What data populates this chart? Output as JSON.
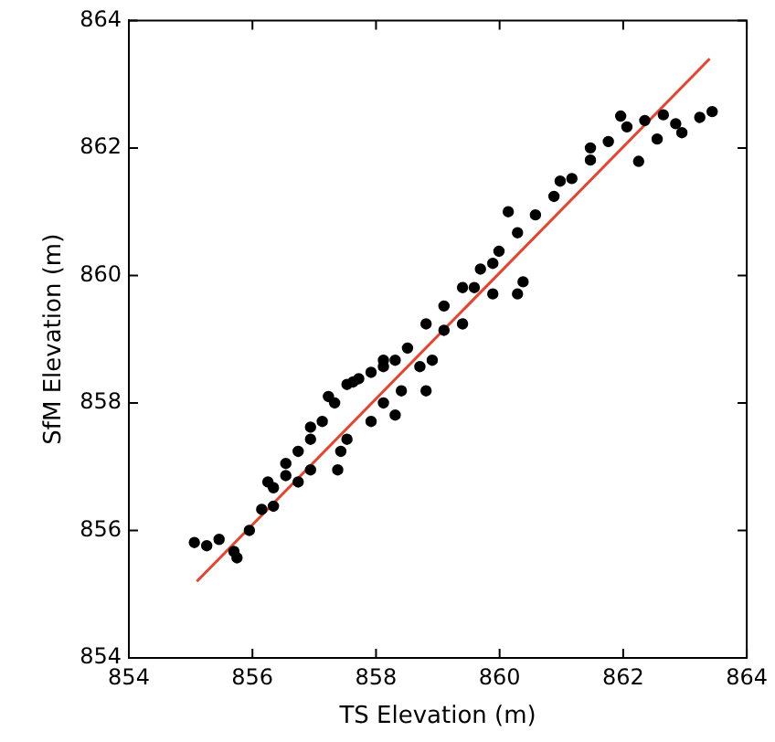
{
  "chart_data": {
    "type": "scatter",
    "xlabel": "TS Elevation (m)",
    "ylabel": "SfM Elevation (m)",
    "xlim": [
      854,
      864
    ],
    "ylim": [
      854,
      864
    ],
    "xticks": [
      854,
      856,
      858,
      860,
      862,
      864
    ],
    "yticks": [
      854,
      856,
      858,
      860,
      862,
      864
    ],
    "grid": false,
    "marker": "circle",
    "series": [
      {
        "color": "#000000",
        "x": [
          855.06,
          855.26,
          855.46,
          855.7,
          855.75,
          855.95,
          856.15,
          856.34,
          856.54,
          856.74,
          856.94,
          857.13,
          857.33,
          857.53,
          857.72,
          857.92,
          858.12,
          858.31,
          858.51,
          858.81,
          859.1,
          859.4,
          859.69,
          859.99,
          860.29,
          860.58,
          860.88,
          861.17,
          861.47,
          861.76,
          862.06,
          862.35,
          862.65,
          862.85,
          863.24,
          863.44,
          856.94,
          857.43,
          857.92,
          858.41,
          858.91,
          859.4,
          859.89,
          860.14,
          860.29,
          860.38,
          858.81,
          858.31,
          857.38,
          861.96,
          862.25,
          860.98,
          861.47,
          862.55,
          862.95,
          857.23,
          857.63,
          858.12,
          856.94,
          856.54,
          856.25,
          856.34,
          856.74,
          857.53,
          858.12,
          858.71,
          859.1,
          859.59,
          859.89
        ],
        "values": [
          855.81,
          855.76,
          855.86,
          855.67,
          855.57,
          856.0,
          856.33,
          856.67,
          856.86,
          857.24,
          857.43,
          857.71,
          858.0,
          858.29,
          858.38,
          858.48,
          858.57,
          858.67,
          858.86,
          859.24,
          859.52,
          859.81,
          860.1,
          860.38,
          860.67,
          860.95,
          861.24,
          861.52,
          861.81,
          862.1,
          862.33,
          862.43,
          862.52,
          862.38,
          862.48,
          862.57,
          856.95,
          857.24,
          857.71,
          858.19,
          858.67,
          859.24,
          859.71,
          861.0,
          859.71,
          859.9,
          858.19,
          857.81,
          856.95,
          862.5,
          861.79,
          861.48,
          862.0,
          862.14,
          862.24,
          858.1,
          858.33,
          858.67,
          857.62,
          857.05,
          856.76,
          856.38,
          856.76,
          857.43,
          858.0,
          858.57,
          859.14,
          859.81,
          860.19
        ]
      },
      {
        "type": "line",
        "marker": "none",
        "color": "#e8432e",
        "x": [
          855.1,
          863.4
        ],
        "values": [
          855.2,
          863.4
        ]
      }
    ]
  }
}
